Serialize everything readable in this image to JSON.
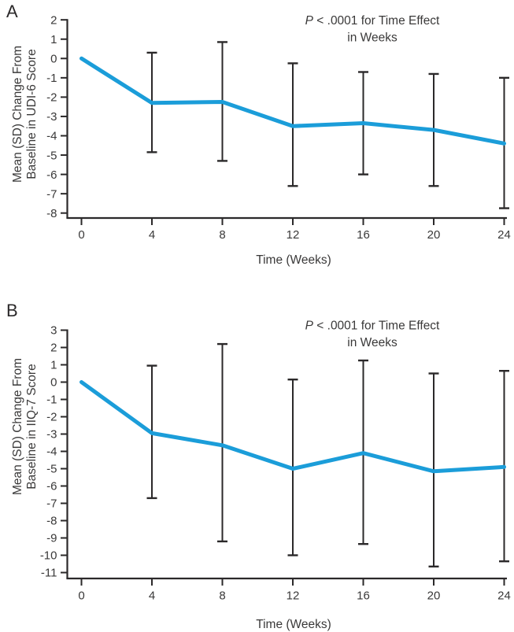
{
  "figure_label_a": "A",
  "figure_label_b": "B",
  "colors": {
    "series_line": "#1b9dd9",
    "axis": "#2b292a",
    "error_bar": "#2b292a",
    "text": "#3a3939"
  },
  "chart_data": [
    {
      "type": "line",
      "panel_label": "A",
      "annotation": {
        "italic_part": "P",
        "text_part": " < .0001 for Time Effect",
        "line2": "in Weeks"
      },
      "xlabel": "Time (Weeks)",
      "ylabel_lines": [
        "Mean (SD) Change From",
        "Baseline in UDI-6 Score"
      ],
      "x": [
        0,
        4,
        8,
        12,
        16,
        20,
        24
      ],
      "series": [
        {
          "name": "Mean (SD) change from baseline in UDI-6 score",
          "values": [
            0,
            -2.3,
            -2.25,
            -3.5,
            -3.35,
            -3.7,
            -4.4
          ],
          "error_upper": [
            null,
            0.3,
            0.85,
            -0.25,
            -0.7,
            -0.8,
            -1.0
          ],
          "error_lower": [
            null,
            -4.85,
            -5.3,
            -6.6,
            -6.0,
            -6.6,
            -7.75
          ]
        }
      ],
      "xlim": [
        0,
        24
      ],
      "xtick_step": 4,
      "ylim": [
        -8,
        2
      ],
      "ytick_step": 1,
      "grid": false,
      "legend": "none"
    },
    {
      "type": "line",
      "panel_label": "B",
      "annotation": {
        "italic_part": "P",
        "text_part": " < .0001 for Time Effect",
        "line2": "in Weeks"
      },
      "xlabel": "Time (Weeks)",
      "ylabel_lines": [
        "Mean (SD) Change From",
        "Baseline in IIQ-7 Score"
      ],
      "x": [
        0,
        4,
        8,
        12,
        16,
        20,
        24
      ],
      "series": [
        {
          "name": "Mean (SD) change from baseline in IIQ-7 score",
          "values": [
            0,
            -2.95,
            -3.65,
            -5.0,
            -4.1,
            -5.15,
            -4.9
          ],
          "error_upper": [
            null,
            0.95,
            2.2,
            0.15,
            1.25,
            0.5,
            0.65
          ],
          "error_lower": [
            null,
            -6.7,
            -9.2,
            -10.0,
            -9.35,
            -10.65,
            -10.35
          ]
        }
      ],
      "xlim": [
        0,
        24
      ],
      "xtick_step": 4,
      "ylim": [
        -11,
        3
      ],
      "ytick_step": 1,
      "grid": false,
      "legend": "none"
    }
  ]
}
